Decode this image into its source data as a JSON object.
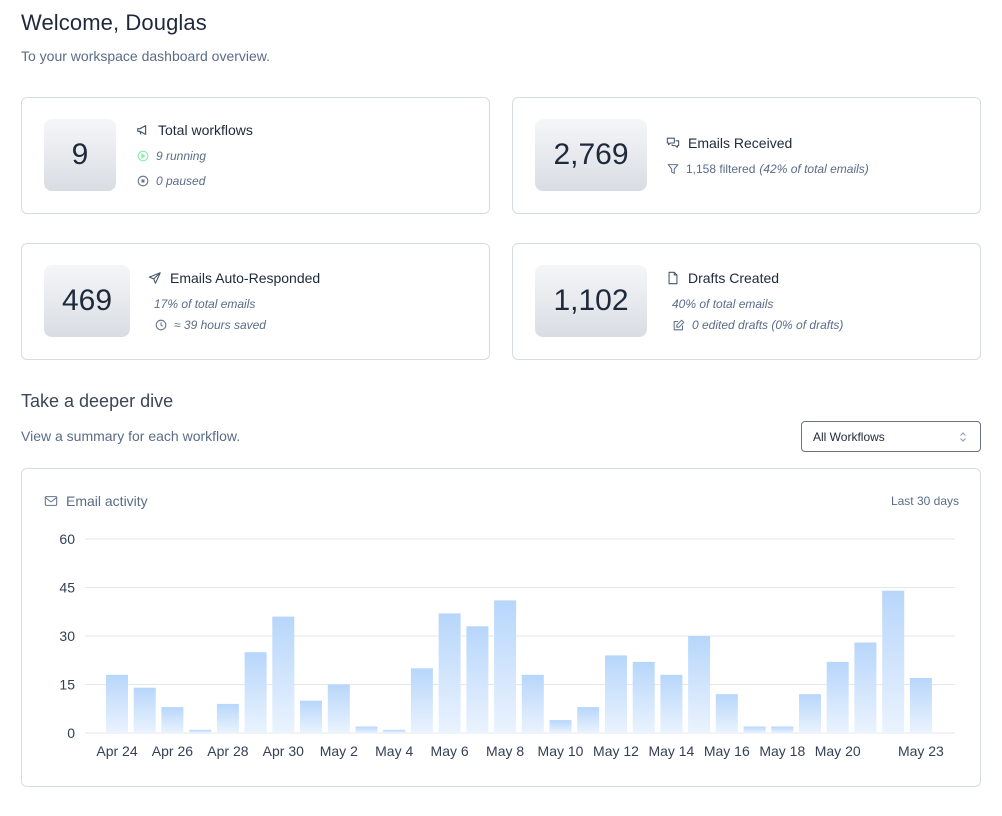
{
  "header": {
    "welcome": "Welcome, Douglas",
    "subtitle": "To your workspace dashboard overview."
  },
  "cards": {
    "workflows": {
      "value": "9",
      "title": "Total workflows",
      "running": "9 running",
      "paused": "0 paused",
      "icons": [
        "megaphone-icon",
        "play-circle-icon",
        "pause-circle-icon"
      ]
    },
    "received": {
      "value": "2,769",
      "title": "Emails Received",
      "filtered": "1,158 filtered",
      "filtered_pct": "(42% of total emails)",
      "icons": [
        "chat-bubbles-icon",
        "filter-icon"
      ]
    },
    "auto": {
      "value": "469",
      "title": "Emails Auto-Responded",
      "pct": "17% of total emails",
      "saved": "≈ 39 hours saved",
      "icons": [
        "send-icon",
        "clock-icon"
      ]
    },
    "drafts": {
      "value": "1,102",
      "title": "Drafts Created",
      "pct": "40% of total emails",
      "edited": "0 edited drafts (0% of drafts)",
      "icons": [
        "document-icon",
        "edit-icon"
      ]
    }
  },
  "dive": {
    "title": "Take a deeper dive",
    "subtitle": "View a summary for each workflow.",
    "select_value": "All Workflows"
  },
  "chart_panel": {
    "title": "Email activity",
    "range": "Last 30 days",
    "icon": "mail-icon"
  },
  "colors": {
    "bar_top": "#b7d6fb",
    "bar_bottom": "#eaf3fe",
    "border": "#d7dce3",
    "text_muted": "#5a6c88"
  },
  "chart_data": {
    "type": "bar",
    "categories": [
      "Apr 24",
      "Apr 25",
      "Apr 26",
      "Apr 27",
      "Apr 28",
      "Apr 29",
      "Apr 30",
      "May 1",
      "May 2",
      "May 3",
      "May 4",
      "May 5",
      "May 6",
      "May 7",
      "May 8",
      "May 9",
      "May 10",
      "May 11",
      "May 12",
      "May 13",
      "May 14",
      "May 15",
      "May 16",
      "May 17",
      "May 18",
      "May 19",
      "May 20",
      "May 21",
      "May 22",
      "May 23"
    ],
    "values": [
      18,
      14,
      8,
      1,
      9,
      25,
      36,
      10,
      15,
      2,
      1,
      20,
      37,
      33,
      41,
      18,
      4,
      8,
      24,
      22,
      18,
      30,
      12,
      2,
      2,
      12,
      22,
      28,
      44,
      17
    ],
    "tick_labels": [
      {
        "label": "Apr 24",
        "category": "Apr 24"
      },
      {
        "label": "Apr 26",
        "category": "Apr 26"
      },
      {
        "label": "Apr 28",
        "category": "Apr 28"
      },
      {
        "label": "Apr 30",
        "category": "Apr 30"
      },
      {
        "label": "May 2",
        "category": "May 2"
      },
      {
        "label": "May 4",
        "category": "May 4"
      },
      {
        "label": "May 6",
        "category": "May 6"
      },
      {
        "label": "May 8",
        "category": "May 8"
      },
      {
        "label": "May 10",
        "category": "May 10"
      },
      {
        "label": "May 12",
        "category": "May 12"
      },
      {
        "label": "May 14",
        "category": "May 14"
      },
      {
        "label": "May 16",
        "category": "May 16"
      },
      {
        "label": "May 18",
        "category": "May 18"
      },
      {
        "label": "May 20",
        "category": "May 20"
      },
      {
        "label": "May 23",
        "category": "May 23"
      }
    ],
    "yticks": [
      0,
      15,
      30,
      45,
      60
    ],
    "ylim": [
      0,
      60
    ],
    "grid": true,
    "title": "",
    "xlabel": "",
    "ylabel": ""
  }
}
